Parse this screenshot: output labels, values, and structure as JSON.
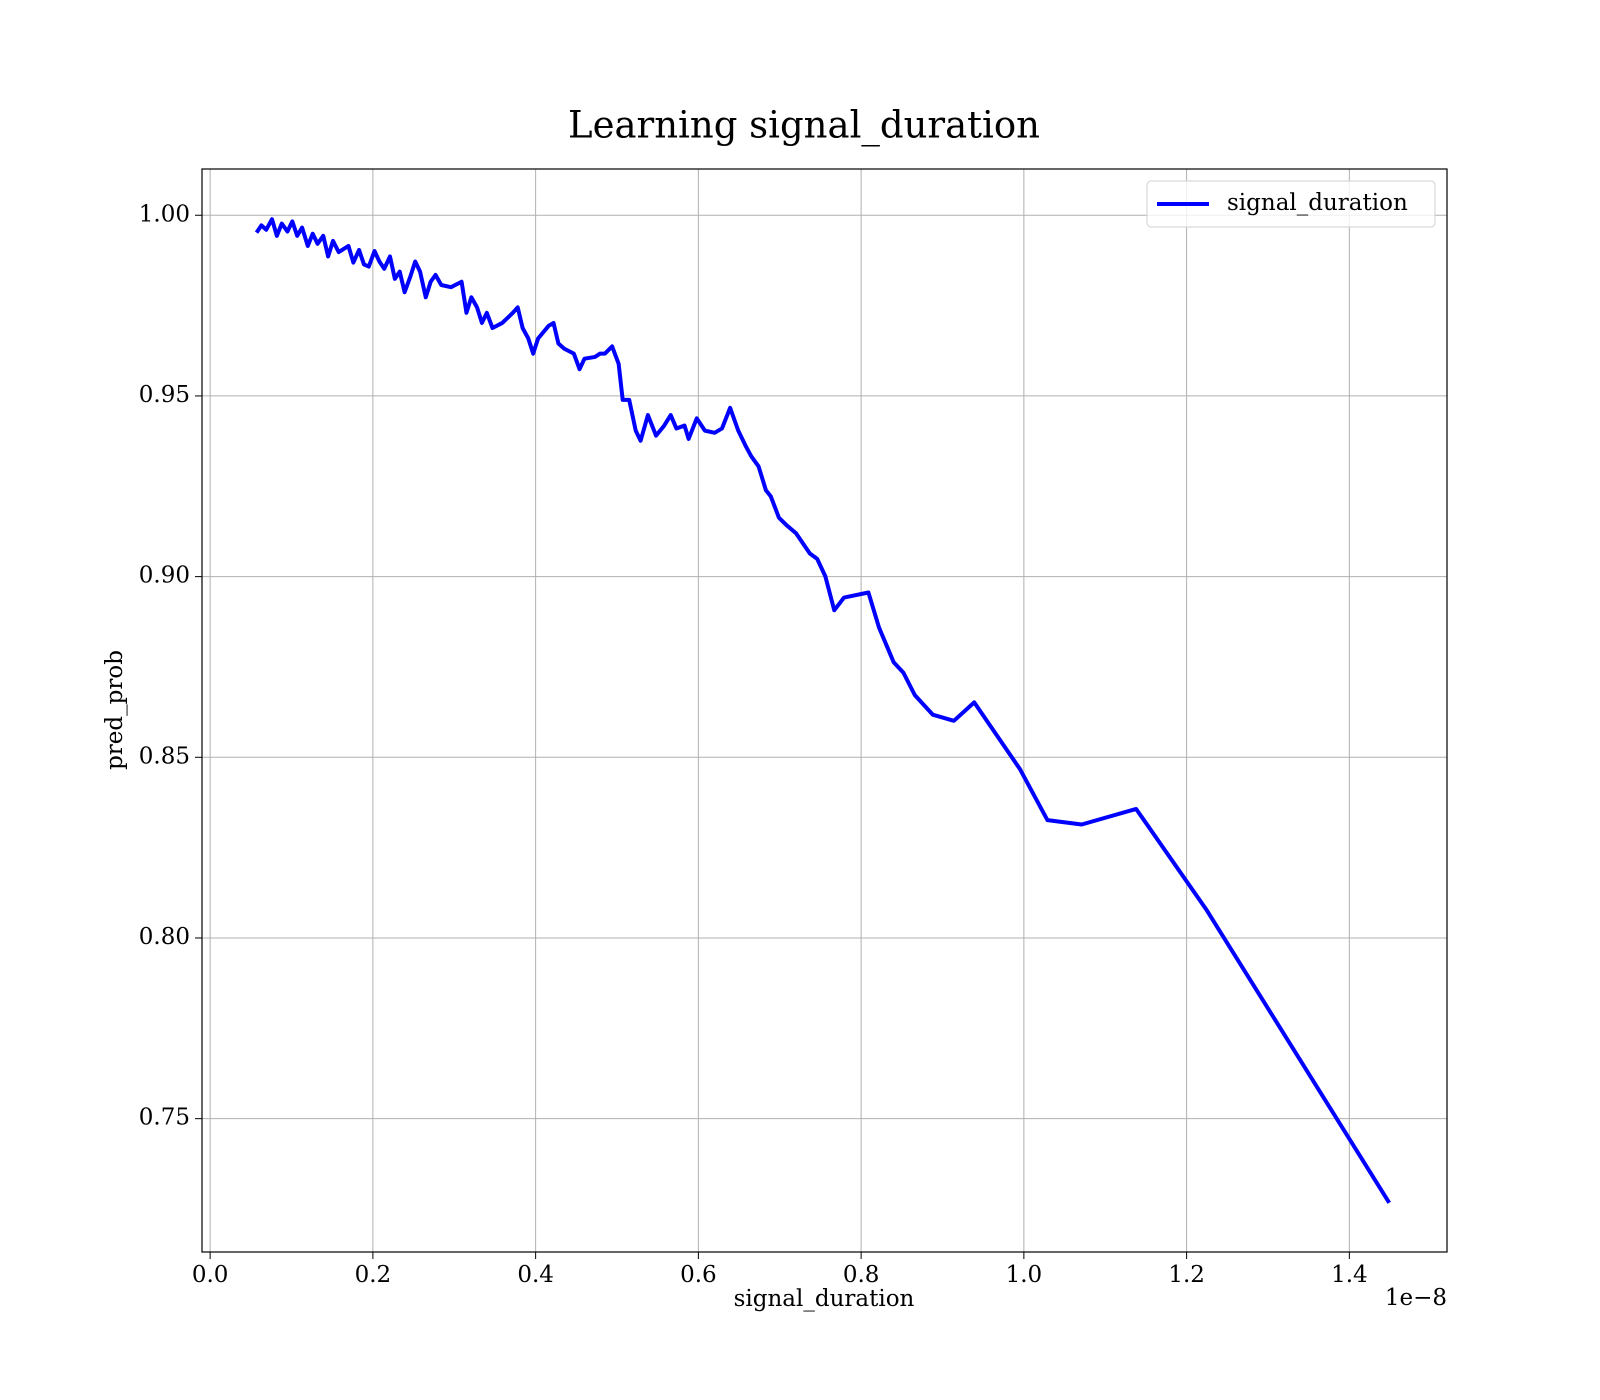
{
  "chart_data": {
    "type": "line",
    "title": "Learning signal_duration",
    "xlabel": "signal_duration",
    "ylabel": "pred_prob",
    "x_offset_label": "1e−8",
    "x": [
      0.057,
      0.063,
      0.069,
      0.076,
      0.082,
      0.088,
      0.095,
      0.101,
      0.107,
      0.113,
      0.12,
      0.126,
      0.132,
      0.139,
      0.145,
      0.151,
      0.158,
      0.17,
      0.176,
      0.183,
      0.189,
      0.195,
      0.202,
      0.208,
      0.214,
      0.221,
      0.227,
      0.233,
      0.239,
      0.246,
      0.252,
      0.258,
      0.265,
      0.271,
      0.277,
      0.284,
      0.296,
      0.309,
      0.315,
      0.321,
      0.328,
      0.334,
      0.34,
      0.347,
      0.359,
      0.372,
      0.378,
      0.384,
      0.391,
      0.397,
      0.403,
      0.416,
      0.422,
      0.428,
      0.435,
      0.447,
      0.454,
      0.46,
      0.473,
      0.479,
      0.485,
      0.494,
      0.502,
      0.507,
      0.515,
      0.523,
      0.529,
      0.538,
      0.548,
      0.558,
      0.566,
      0.573,
      0.583,
      0.588,
      0.598,
      0.608,
      0.62,
      0.629,
      0.639,
      0.649,
      0.658,
      0.665,
      0.674,
      0.683,
      0.689,
      0.699,
      0.708,
      0.72,
      0.737,
      0.746,
      0.756,
      0.767,
      0.779,
      0.809,
      0.822,
      0.84,
      0.852,
      0.866,
      0.888,
      0.914,
      0.939,
      0.995,
      1.029,
      1.071,
      1.138,
      1.225,
      1.449
    ],
    "series": [
      {
        "name": "signal_duration",
        "color": "#0000ff",
        "values": [
          0.9952,
          0.9972,
          0.996,
          0.9989,
          0.9943,
          0.9977,
          0.9955,
          0.9983,
          0.9943,
          0.9966,
          0.9915,
          0.9949,
          0.9921,
          0.9943,
          0.9886,
          0.9929,
          0.9898,
          0.9915,
          0.9869,
          0.9904,
          0.9864,
          0.9858,
          0.9901,
          0.9872,
          0.9852,
          0.9886,
          0.9824,
          0.9844,
          0.9787,
          0.983,
          0.9872,
          0.9844,
          0.9773,
          0.9816,
          0.9835,
          0.9807,
          0.9801,
          0.9816,
          0.973,
          0.9773,
          0.9745,
          0.9702,
          0.973,
          0.9688,
          0.9702,
          0.973,
          0.9745,
          0.9688,
          0.9659,
          0.9617,
          0.9659,
          0.9694,
          0.9702,
          0.9645,
          0.9631,
          0.9617,
          0.9574,
          0.9603,
          0.9608,
          0.9617,
          0.9617,
          0.9637,
          0.9589,
          0.9489,
          0.9489,
          0.9404,
          0.9376,
          0.9447,
          0.939,
          0.9418,
          0.9447,
          0.941,
          0.9418,
          0.9381,
          0.9438,
          0.9404,
          0.9398,
          0.941,
          0.9467,
          0.9404,
          0.9362,
          0.9333,
          0.9305,
          0.9239,
          0.9222,
          0.9163,
          0.9143,
          0.912,
          0.9064,
          0.9049,
          0.9001,
          0.8907,
          0.8942,
          0.8956,
          0.8859,
          0.8763,
          0.8734,
          0.8672,
          0.8618,
          0.8601,
          0.8652,
          0.8468,
          0.8326,
          0.8314,
          0.8357,
          0.8076,
          0.7267
        ]
      }
    ],
    "xlim": [
      -0.01,
      1.52
    ],
    "xticks": [
      {
        "value": 0,
        "label": "0.0"
      },
      0.2,
      0.4,
      0.6,
      0.8,
      {
        "value": 1,
        "label": "1.0"
      },
      1.2,
      1.4
    ],
    "ylim": [
      0.7131,
      1.0128
    ],
    "yticks": [
      {
        "value": 0.75,
        "label": "0.75"
      },
      {
        "value": 0.8,
        "label": "0.80"
      },
      {
        "value": 0.85,
        "label": "0.85"
      },
      {
        "value": 0.9,
        "label": "0.90"
      },
      {
        "value": 0.95,
        "label": "0.95"
      },
      {
        "value": 1,
        "label": "1.00"
      }
    ],
    "grid": true,
    "legend": "upper right"
  }
}
